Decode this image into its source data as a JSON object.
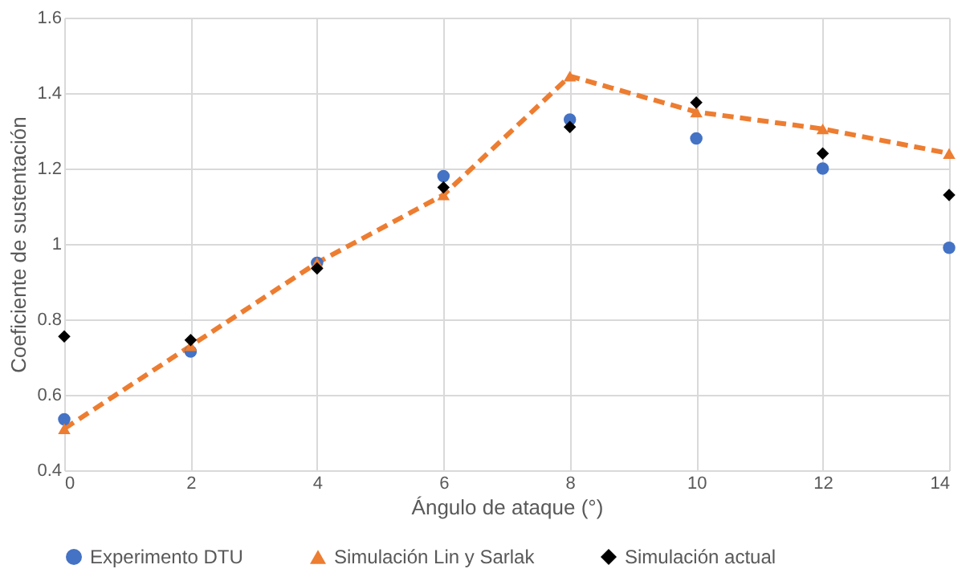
{
  "chart_data": {
    "type": "scatter",
    "xlabel": "Ángulo de ataque (°)",
    "ylabel": "Coeficiente de sustentación",
    "x": [
      0,
      2,
      4,
      6,
      8,
      10,
      12,
      14
    ],
    "xlim": [
      0,
      14
    ],
    "xticks": [
      0,
      2,
      4,
      6,
      8,
      10,
      12,
      14
    ],
    "ylim": [
      0.4,
      1.6
    ],
    "yticks": [
      0.4,
      0.6,
      0.8,
      1,
      1.2,
      1.4,
      1.6
    ],
    "grid": true,
    "legend": "bottom",
    "series": [
      {
        "name": "Experimento DTU",
        "type": "scatter",
        "marker": "circle",
        "color": "#4472c4",
        "values": [
          0.535,
          0.715,
          0.95,
          1.18,
          1.33,
          1.28,
          1.2,
          0.99
        ]
      },
      {
        "name": "Simulación Lin y Sarlak",
        "type": "line",
        "marker": "triangle",
        "line_style": "dashed",
        "color": "#ed7d31",
        "values": [
          0.51,
          0.73,
          0.95,
          1.13,
          1.445,
          1.35,
          1.305,
          1.24
        ]
      },
      {
        "name": "Simulación actual",
        "type": "scatter",
        "marker": "diamond",
        "color": "#000000",
        "values": [
          0.755,
          0.745,
          0.935,
          1.15,
          1.31,
          1.375,
          1.24,
          1.13
        ]
      }
    ]
  }
}
